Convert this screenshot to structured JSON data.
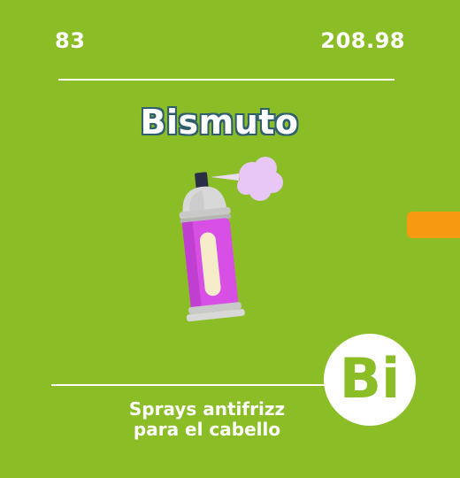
{
  "element": {
    "atomic_number": "83",
    "atomic_mass": "208.98",
    "name": "Bismuto",
    "symbol": "Bi",
    "use_line_1": "Sprays antifrizz",
    "use_line_2": "para el cabello"
  },
  "illustration": {
    "icon": "hair-spray-can-icon",
    "can_color": "#d84fe6",
    "cap_color": "#d8d8d8",
    "mist_color": "#e8c6f5"
  },
  "colors": {
    "background": "#8bbd26",
    "accent_tab": "#f59a11",
    "title_outline": "#2f5f6f",
    "text": "#ffffff"
  }
}
